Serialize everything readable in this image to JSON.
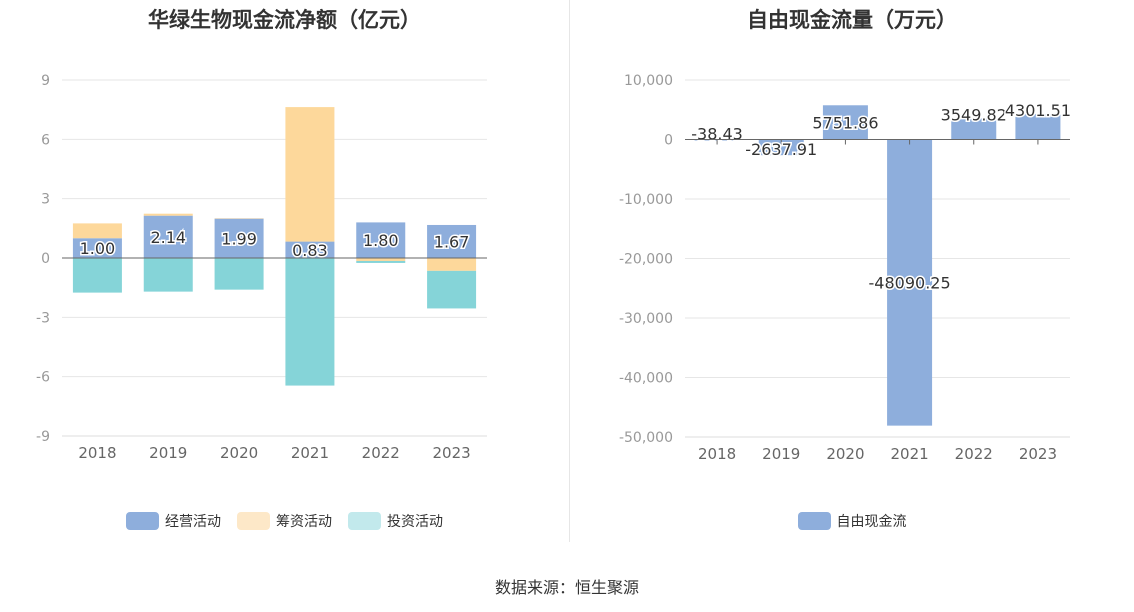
{
  "chart_data": [
    {
      "type": "bar",
      "stacked": true,
      "title": "华绿生物现金流净额（亿元）",
      "categories": [
        "2018",
        "2019",
        "2020",
        "2021",
        "2022",
        "2023"
      ],
      "ylim": [
        -9,
        9
      ],
      "yticks": [
        9,
        6,
        3,
        0,
        -3,
        -6,
        -9
      ],
      "ytick_labels": [
        "9",
        "6",
        "3",
        "0",
        "-3",
        "-6",
        "-9"
      ],
      "grid": true,
      "legend_position": "bottom",
      "series": [
        {
          "name": "经营活动",
          "color": "#8eaedc",
          "values": [
            1.0,
            2.14,
            1.99,
            0.83,
            1.8,
            1.67
          ],
          "labels": [
            "1.00",
            "2.14",
            "1.99",
            "0.83",
            "1.80",
            "1.67"
          ]
        },
        {
          "name": "筹资活动",
          "color": "#fdd89b",
          "values": [
            0.75,
            0.1,
            0.02,
            6.8,
            -0.15,
            -0.65
          ]
        },
        {
          "name": "投资活动",
          "color": "#85d4d8",
          "values": [
            -1.75,
            -1.7,
            -1.6,
            -6.45,
            -0.1,
            -1.9
          ]
        }
      ]
    },
    {
      "type": "bar",
      "title": "自由现金流量（万元）",
      "categories": [
        "2018",
        "2019",
        "2020",
        "2021",
        "2022",
        "2023"
      ],
      "ylim": [
        -50000,
        10000
      ],
      "yticks": [
        10000,
        0,
        -10000,
        -20000,
        -30000,
        -40000,
        -50000
      ],
      "ytick_labels": [
        "10,000",
        "0",
        "-10,000",
        "-20,000",
        "-30,000",
        "-40,000",
        "-50,000"
      ],
      "grid": true,
      "legend_position": "bottom",
      "series": [
        {
          "name": "自由现金流",
          "color": "#8eaedc",
          "values": [
            -38.43,
            -2637.91,
            5751.86,
            -48090.25,
            3549.82,
            4301.51
          ],
          "labels": [
            "-38.43",
            "-2637.91",
            "5751.86",
            "-48090.25",
            "3549.82",
            "4301.51"
          ]
        }
      ]
    }
  ],
  "source_text": "数据来源：恒生聚源"
}
